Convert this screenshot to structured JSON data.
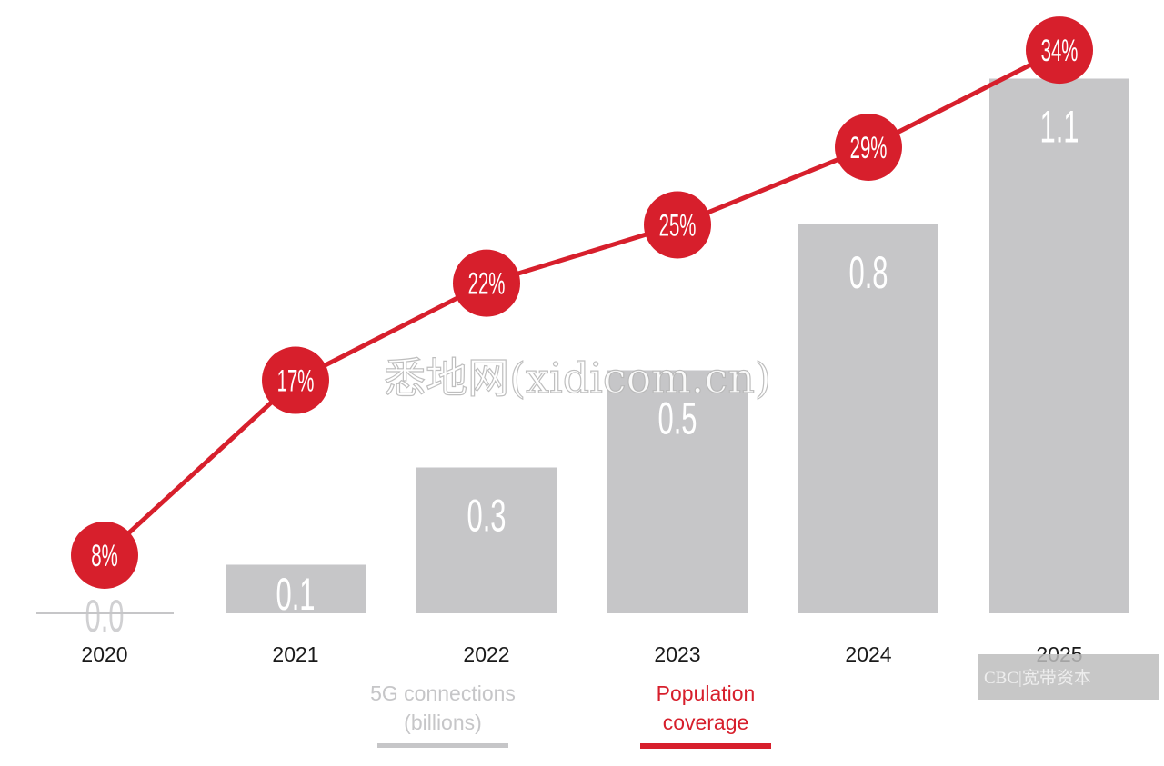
{
  "chart_data": {
    "type": "bar+line",
    "categories": [
      "2020",
      "2021",
      "2022",
      "2023",
      "2024",
      "2025"
    ],
    "series": [
      {
        "name": "5G connections (billions)",
        "type": "bar",
        "values": [
          0.0,
          0.1,
          0.3,
          0.5,
          0.8,
          1.1
        ],
        "labels": [
          "0.0",
          "0.1",
          "0.3",
          "0.5",
          "0.8",
          "1.1"
        ],
        "color": "#c6c6c8"
      },
      {
        "name": "Population coverage",
        "type": "line",
        "values": [
          8,
          17,
          22,
          25,
          29,
          34
        ],
        "labels": [
          "8%",
          "17%",
          "22%",
          "25%",
          "29%",
          "34%"
        ],
        "color": "#d71f2c"
      }
    ],
    "legend": [
      {
        "label_lines": [
          "5G connections",
          "(billions)"
        ],
        "color": "#c6c6c8"
      },
      {
        "label_lines": [
          "Population",
          "coverage"
        ],
        "color": "#d71f2c"
      }
    ],
    "legend_placement": "bottom",
    "grid": false
  },
  "watermarks": {
    "center": "悉地网(xidicom.cn)",
    "corner": "CBC|宽带资本"
  }
}
